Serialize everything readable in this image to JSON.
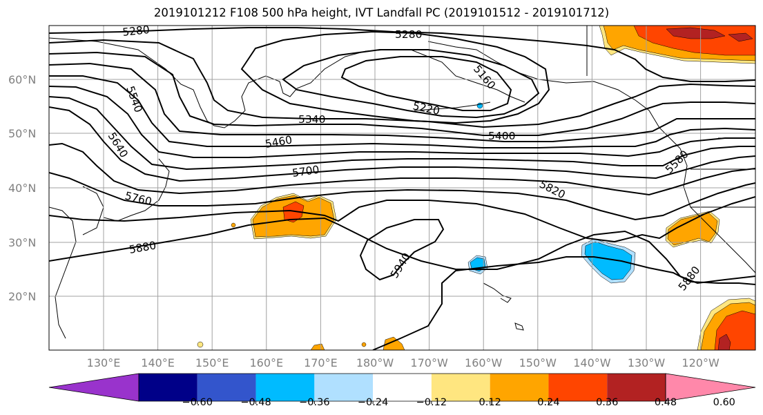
{
  "title": "2019101212 F108 500 hPa height, IVT Landfall PC (2019101512 - 2019101712)",
  "lat_labels": [
    "60°N",
    "50°N",
    "40°N",
    "30°N",
    "20°N"
  ],
  "lon_labels": [
    "130°E",
    "140°E",
    "150°E",
    "160°E",
    "170°E",
    "180°W",
    "170°W",
    "160°W",
    "150°W",
    "140°W",
    "130°W",
    "120°W"
  ],
  "contour_labels": [
    "5280",
    "5280",
    "5160",
    "5220",
    "5340",
    "5400",
    "5460",
    "5540",
    "5640",
    "5700",
    "5760",
    "5820",
    "5580",
    "5880",
    "5880",
    "5940"
  ],
  "colorbar": {
    "ticks": [
      "−0.60",
      "−0.48",
      "−0.36",
      "−0.24",
      "−0.12",
      "0.12",
      "0.24",
      "0.36",
      "0.48",
      "0.60"
    ],
    "colors": [
      "#9933cc",
      "#000088",
      "#3355cc",
      "#00bbff",
      "#b0e0ff",
      "#ffffff",
      "#ffe680",
      "#ffa500",
      "#ff4500",
      "#b22222",
      "#ff88aa"
    ]
  },
  "fill_colors": {
    "lightblue": "#b0e0ff",
    "cyan": "#00bbff",
    "yellow": "#ffe680",
    "orange": "#ffa500",
    "redorange": "#ff4500",
    "darkred": "#b22222"
  }
}
